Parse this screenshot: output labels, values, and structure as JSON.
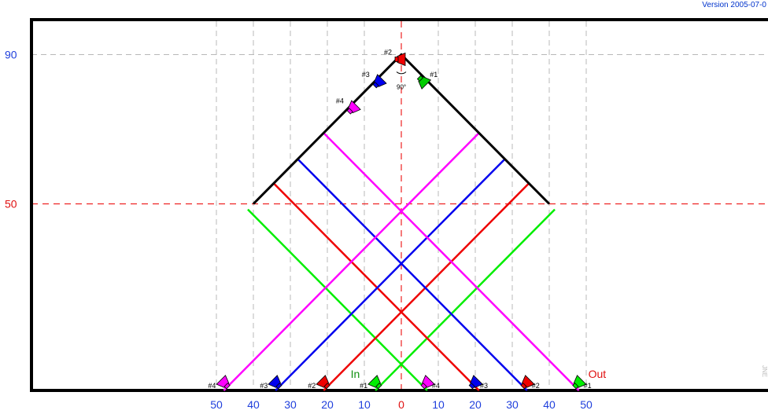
{
  "header": {
    "version": "Version 2005-07-0"
  },
  "side_mark": "JNE",
  "y_labels": [
    {
      "text": "90",
      "value": 90,
      "color": "#1f3fdc"
    },
    {
      "text": "50",
      "value": 50,
      "color": "#e01010"
    }
  ],
  "x_tick_labels": [
    {
      "text": "50",
      "value": -50,
      "color": "#1f3fdc"
    },
    {
      "text": "40",
      "value": -40,
      "color": "#1f3fdc"
    },
    {
      "text": "30",
      "value": -30,
      "color": "#1f3fdc"
    },
    {
      "text": "20",
      "value": -20,
      "color": "#1f3fdc"
    },
    {
      "text": "10",
      "value": -10,
      "color": "#1f3fdc"
    },
    {
      "text": "0",
      "value": 0,
      "color": "#e01010"
    },
    {
      "text": "10",
      "value": 10,
      "color": "#1f3fdc"
    },
    {
      "text": "20",
      "value": 20,
      "color": "#1f3fdc"
    },
    {
      "text": "30",
      "value": 30,
      "color": "#1f3fdc"
    },
    {
      "text": "40",
      "value": 40,
      "color": "#1f3fdc"
    },
    {
      "text": "50",
      "value": 50,
      "color": "#1f3fdc"
    }
  ],
  "grid_x_values": [
    -50,
    -40,
    -30,
    -20,
    -10,
    10,
    20,
    30,
    40,
    50
  ],
  "mirror_apex": {
    "x": 0,
    "y": 90
  },
  "mirror_left_end": {
    "x": -40,
    "y": 50
  },
  "mirror_right_end": {
    "x": 40,
    "y": 50
  },
  "angle_label": "90°",
  "beams": [
    {
      "name": "#1",
      "color": "#00ee00",
      "in_x": -7,
      "out_x": 48
    },
    {
      "name": "#2",
      "color": "#ee0000",
      "in_x": -21,
      "out_x": 34
    },
    {
      "name": "#3",
      "color": "#0000ee",
      "in_x": -34,
      "out_x": 20
    },
    {
      "name": "#4",
      "color": "#ff00ff",
      "in_x": -48,
      "out_x": 7
    }
  ],
  "in_label": "In",
  "out_label": "Out",
  "in_label_color": "#109010",
  "out_label_color": "#e01010",
  "top_markers": [
    {
      "name": "#2",
      "color": "#ee0000",
      "x": 0
    },
    {
      "name": "#1",
      "color": "#00cc00",
      "x": 6
    },
    {
      "name": "#3",
      "color": "#0000ee",
      "x": -6
    },
    {
      "name": "#4",
      "color": "#ff00ff",
      "x": -13
    }
  ]
}
